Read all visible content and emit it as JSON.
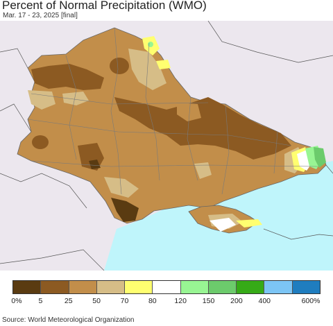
{
  "header": {
    "title": "Percent of Normal Precipitation (WMO)",
    "subtitle": "Mar. 17 - 23, 2025 [final]"
  },
  "colors": {
    "background_land": "#ece7ee",
    "sea": "#bff5fb",
    "border": "#6a6a6a"
  },
  "legend": {
    "swatches": [
      "#5a3b11",
      "#8c5a22",
      "#c28e4a",
      "#d6bd87",
      "#ffff70",
      "#ffffff",
      "#98f593",
      "#6ccb6c",
      "#36aa17",
      "#7cc5f5",
      "#1f7dbf"
    ],
    "ticks": [
      "0%",
      "5",
      "25",
      "50",
      "70",
      "80",
      "120",
      "150",
      "200",
      "400",
      "600%"
    ]
  },
  "footer": {
    "source": "Source: World Meteorological Organization"
  }
}
